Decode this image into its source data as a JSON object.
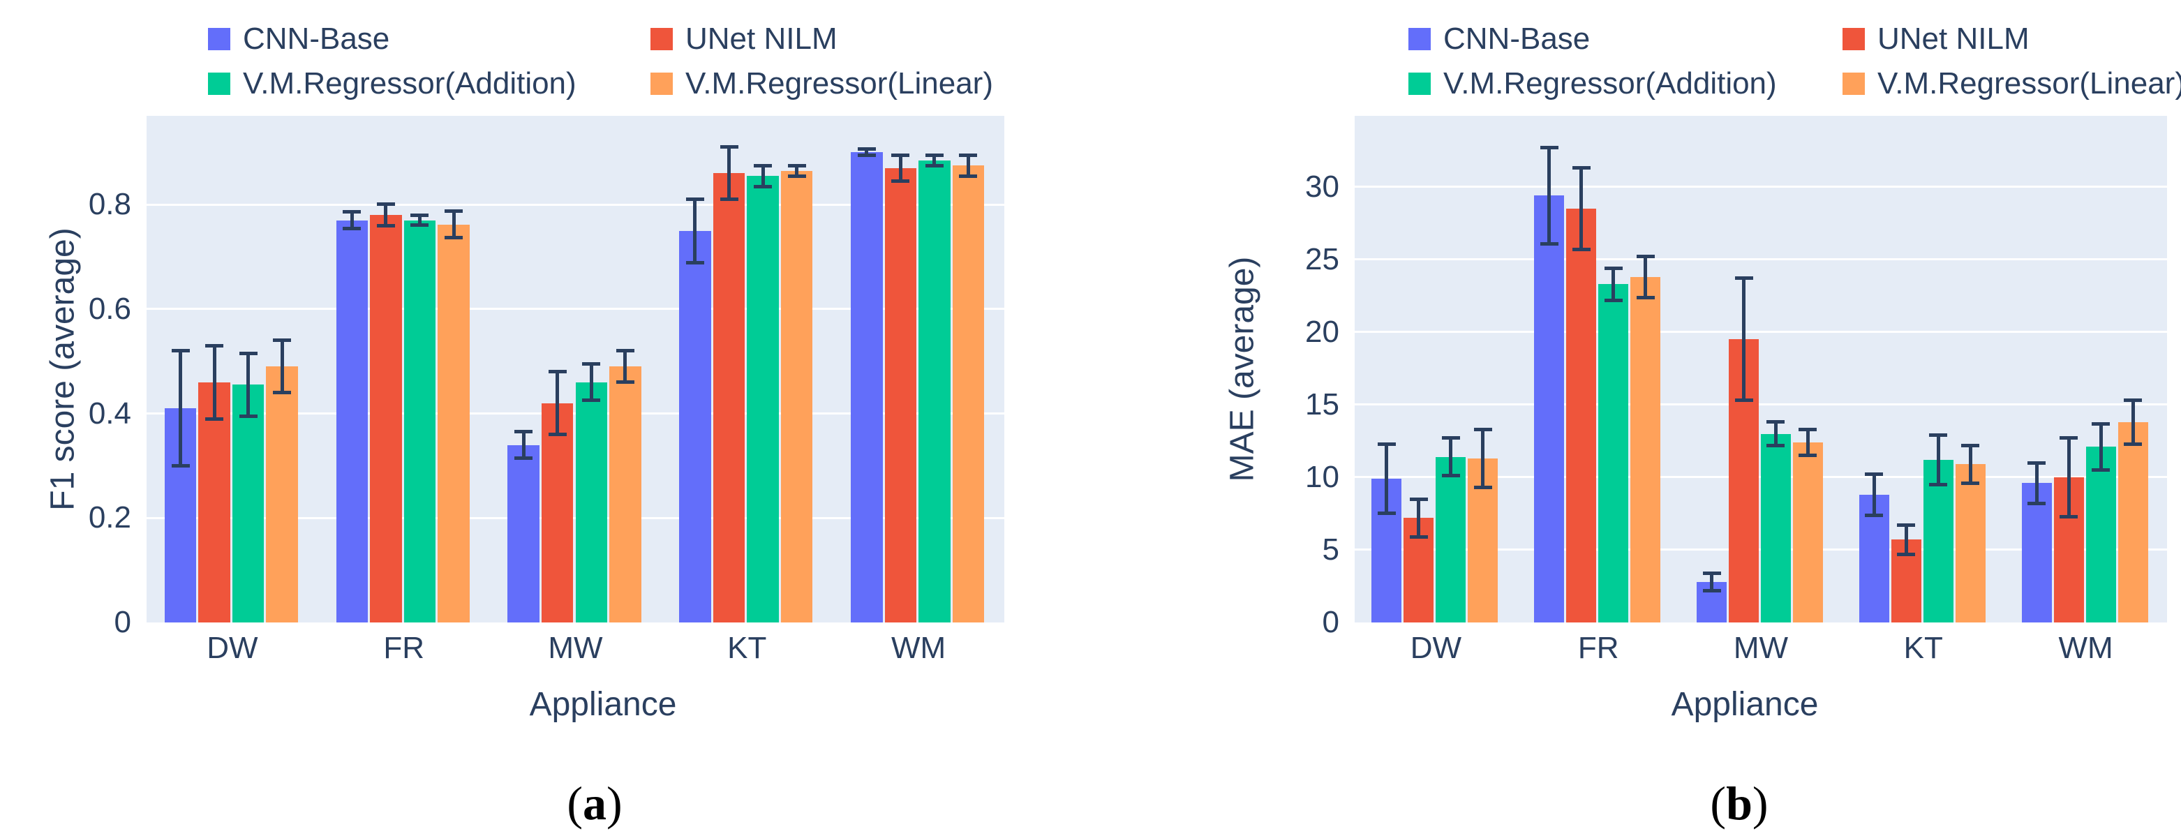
{
  "style": {
    "page_bg": "#FFFFFF",
    "plot_bg": "#E5ECF6",
    "grid_color": "#FFFFFF",
    "text_color": "#2A3F5F",
    "error_bar_color": "#2A3F5F",
    "caption_color": "#000000",
    "series_colors": [
      "#636EFA",
      "#EF553B",
      "#00CC96",
      "#FFA15A"
    ]
  },
  "chart_data": [
    {
      "type": "bar",
      "panel": "a",
      "caption": {
        "open": "(",
        "letter": "a",
        "close": ")"
      },
      "xlabel": "Appliance",
      "ylabel": "F1 score (average)",
      "categories": [
        "DW",
        "FR",
        "MW",
        "KT",
        "WM"
      ],
      "ylim": [
        0,
        0.97
      ],
      "yticks": [
        0,
        0.2,
        0.4,
        0.6,
        0.8
      ],
      "ytick_labels": [
        "0",
        "0.2",
        "0.4",
        "0.6",
        "0.8"
      ],
      "grid": true,
      "legend_position": "top",
      "error_bars": true,
      "series": [
        {
          "name": "CNN-Base",
          "color": "#636EFA",
          "values": [
            0.41,
            0.77,
            0.34,
            0.75,
            0.9
          ],
          "errors": [
            0.11,
            0.016,
            0.025,
            0.061,
            0.006
          ]
        },
        {
          "name": "UNet NILM",
          "color": "#EF553B",
          "values": [
            0.46,
            0.78,
            0.42,
            0.86,
            0.87
          ],
          "errors": [
            0.07,
            0.021,
            0.06,
            0.05,
            0.025
          ]
        },
        {
          "name": "V.M.Regressor(Addition)",
          "color": "#00CC96",
          "values": [
            0.455,
            0.77,
            0.46,
            0.855,
            0.885
          ],
          "errors": [
            0.06,
            0.009,
            0.035,
            0.02,
            0.01
          ]
        },
        {
          "name": "V.M.Regressor(Linear)",
          "color": "#FFA15A",
          "values": [
            0.49,
            0.762,
            0.49,
            0.865,
            0.875
          ],
          "errors": [
            0.05,
            0.025,
            0.03,
            0.01,
            0.02
          ]
        }
      ]
    },
    {
      "type": "bar",
      "panel": "b",
      "caption": {
        "open": "(",
        "letter": "b",
        "close": ")"
      },
      "xlabel": "Appliance",
      "ylabel": "MAE (average)",
      "categories": [
        "DW",
        "FR",
        "MW",
        "KT",
        "WM"
      ],
      "ylim": [
        0,
        34.9
      ],
      "yticks": [
        0,
        5,
        10,
        15,
        20,
        25,
        30
      ],
      "ytick_labels": [
        "0",
        "5",
        "10",
        "15",
        "20",
        "25",
        "30"
      ],
      "grid": true,
      "legend_position": "top",
      "error_bars": true,
      "series": [
        {
          "name": "CNN-Base",
          "color": "#636EFA",
          "values": [
            9.9,
            29.4,
            2.8,
            8.8,
            9.6
          ],
          "errors": [
            2.4,
            3.3,
            0.6,
            1.4,
            1.4
          ]
        },
        {
          "name": "UNet NILM",
          "color": "#EF553B",
          "values": [
            7.2,
            28.5,
            19.5,
            5.7,
            10.0
          ],
          "errors": [
            1.3,
            2.8,
            4.2,
            1.0,
            2.7
          ]
        },
        {
          "name": "V.M.Regressor(Addition)",
          "color": "#00CC96",
          "values": [
            11.4,
            23.3,
            13.0,
            11.2,
            12.1
          ],
          "errors": [
            1.3,
            1.1,
            0.8,
            1.7,
            1.6
          ]
        },
        {
          "name": "V.M.Regressor(Linear)",
          "color": "#FFA15A",
          "values": [
            11.3,
            23.8,
            12.4,
            10.9,
            13.8
          ],
          "errors": [
            2.0,
            1.4,
            0.9,
            1.3,
            1.5
          ]
        }
      ]
    }
  ]
}
